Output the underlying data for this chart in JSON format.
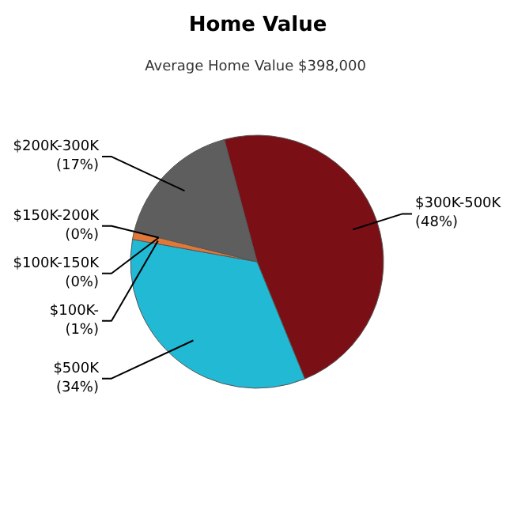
{
  "chart_data": {
    "type": "pie",
    "title": "Home Value",
    "subtitle": "Average Home Value  $398,000",
    "categories": [
      "$300K-500K",
      "$500K",
      "$100K-",
      "$150K-200K",
      "$100K-150K",
      "$200K-300K"
    ],
    "values": [
      48,
      34,
      1,
      0,
      0,
      17
    ],
    "colors": [
      "#7a1015",
      "#22b9d5",
      "#e0783a",
      "#e8d8a0",
      "#a8c860",
      "#5e5e5e"
    ],
    "value_labels": [
      "(48%)",
      "(34%)",
      "(1%)",
      "(0%)",
      "(0%)",
      "(17%)"
    ]
  }
}
